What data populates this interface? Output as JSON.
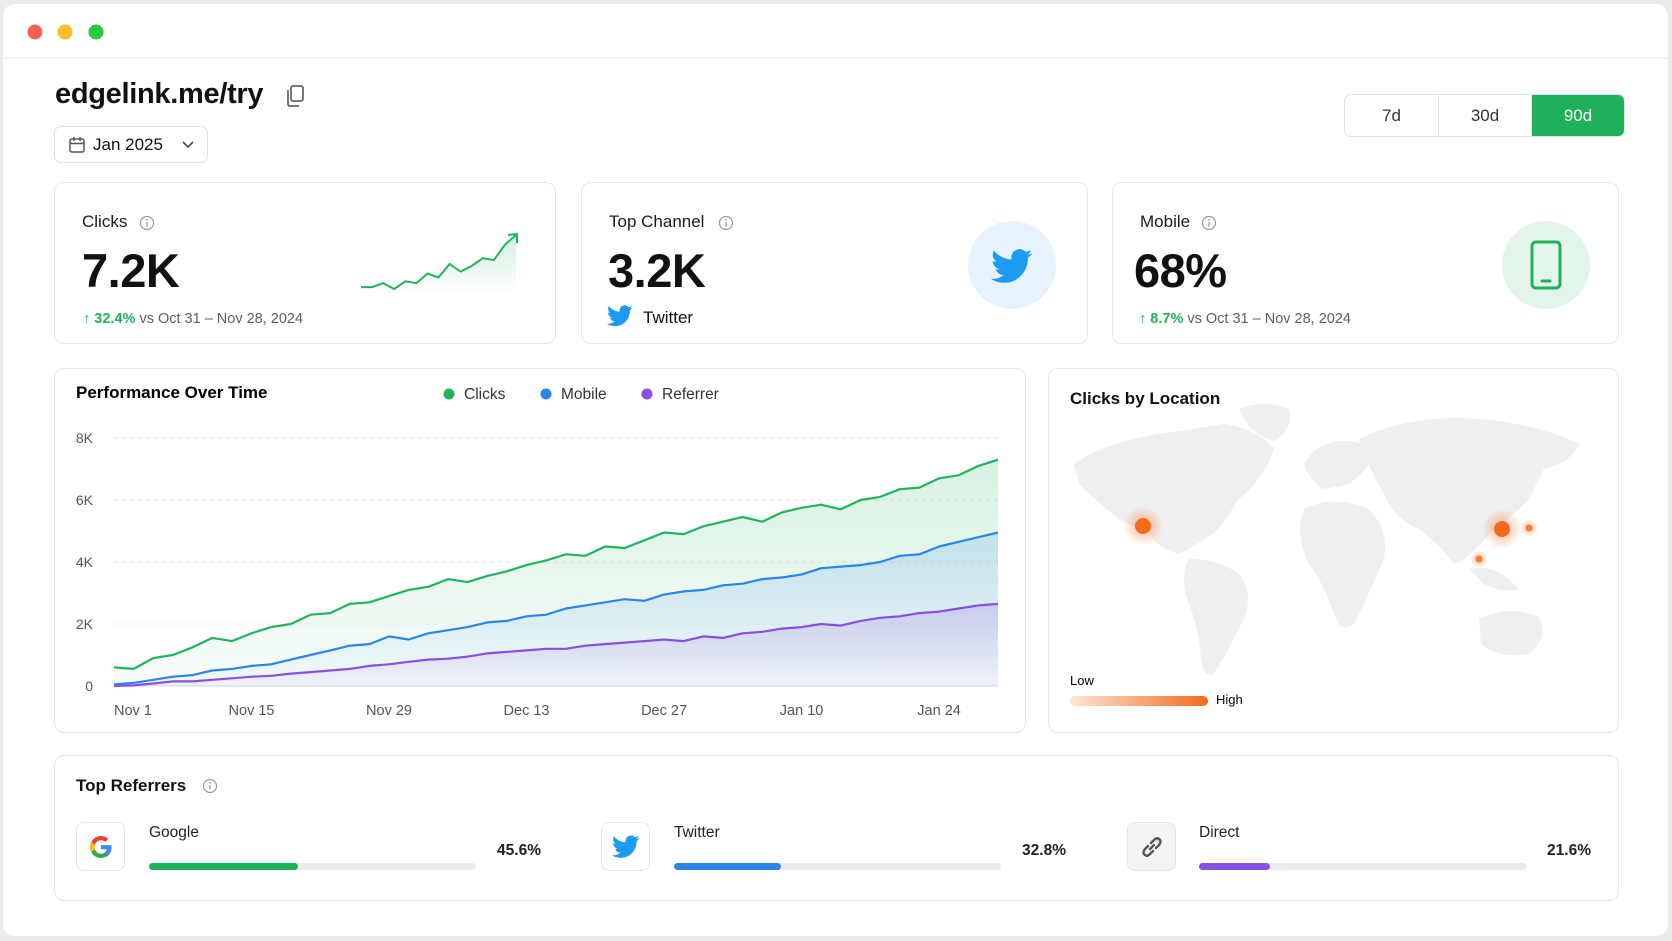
{
  "header": {
    "title": "edgelink.me/try",
    "date": "Jan 2025",
    "ranges": [
      "7d",
      "30d",
      "90d"
    ],
    "active_range": "90d"
  },
  "cards": [
    {
      "label": "Clicks",
      "value": "7.2K",
      "change": "32.4%",
      "comparison": "vs Oct 31 – Nov 28, 2024",
      "sparkline": [
        10,
        10,
        12,
        9,
        13,
        12,
        17,
        15,
        22,
        18,
        21,
        25,
        24,
        32,
        37
      ]
    },
    {
      "label": "Top Channel",
      "value": "3.2K",
      "channel": "Twitter"
    },
    {
      "label": "Mobile",
      "value": "68%",
      "change": "8.7%",
      "comparison": "vs Oct 31 – Nov 28, 2024"
    }
  ],
  "chart_data": {
    "type": "line",
    "title": "Performance Over Time",
    "categories": [
      "Nov 1",
      null,
      null,
      null,
      null,
      null,
      null,
      "Nov 15",
      null,
      null,
      null,
      null,
      null,
      null,
      "Nov 29",
      null,
      null,
      null,
      null,
      null,
      null,
      "Dec 13",
      null,
      null,
      null,
      null,
      null,
      null,
      "Dec 27",
      null,
      null,
      null,
      null,
      null,
      null,
      "Jan 10",
      null,
      null,
      null,
      null,
      null,
      null,
      "Jan 24",
      null,
      null,
      null
    ],
    "series": [
      {
        "name": "Clicks",
        "color": "#22b35e",
        "values": [
          600,
          550,
          900,
          1000,
          1250,
          1550,
          1450,
          1700,
          1900,
          2000,
          2300,
          2350,
          2650,
          2700,
          2900,
          3100,
          3200,
          3450,
          3350,
          3550,
          3700,
          3900,
          4050,
          4250,
          4200,
          4500,
          4450,
          4700,
          4950,
          4900,
          5150,
          5300,
          5450,
          5300,
          5600,
          5750,
          5850,
          5700,
          6000,
          6100,
          6350,
          6400,
          6700,
          6800,
          7100,
          7300
        ]
      },
      {
        "name": "Mobile",
        "color": "#2b86e8",
        "values": [
          50,
          100,
          200,
          300,
          350,
          500,
          550,
          650,
          700,
          850,
          1000,
          1150,
          1300,
          1350,
          1600,
          1500,
          1700,
          1800,
          1900,
          2050,
          2100,
          2250,
          2300,
          2500,
          2600,
          2700,
          2800,
          2750,
          2950,
          3050,
          3100,
          3250,
          3300,
          3450,
          3500,
          3600,
          3800,
          3850,
          3900,
          4000,
          4200,
          4250,
          4500,
          4650,
          4800,
          4950
        ]
      },
      {
        "name": "Referrer",
        "color": "#8b4fe0",
        "values": [
          0,
          20,
          80,
          150,
          150,
          200,
          250,
          300,
          330,
          400,
          450,
          500,
          550,
          650,
          700,
          780,
          850,
          880,
          950,
          1050,
          1100,
          1150,
          1200,
          1200,
          1300,
          1350,
          1400,
          1450,
          1500,
          1450,
          1600,
          1550,
          1700,
          1750,
          1850,
          1900,
          2000,
          1950,
          2100,
          2200,
          2250,
          2350,
          2400,
          2500,
          2600,
          2650
        ]
      }
    ],
    "ylim": [
      0,
      8000
    ],
    "yticks": [
      0,
      {
        "value": 2000,
        "label": "2K"
      },
      {
        "value": 4000,
        "label": "4K"
      },
      {
        "value": 6000,
        "label": "6K"
      },
      {
        "value": 8000,
        "label": "8K"
      }
    ],
    "grid": true
  },
  "map": {
    "title": "Clicks by Location",
    "legend_low": "Low",
    "legend_high": "High"
  },
  "referrers": {
    "title": "Top Referrers",
    "items": [
      {
        "name": "Google",
        "value": 45.6,
        "label": "45.6%",
        "color": "#1fb15a"
      },
      {
        "name": "Twitter",
        "value": 32.8,
        "label": "32.8%",
        "color": "#2b86e8"
      },
      {
        "name": "Direct",
        "value": 21.6,
        "label": "21.6%",
        "color": "#8b4fe0"
      }
    ],
    "xlim": [
      0,
      100
    ]
  }
}
